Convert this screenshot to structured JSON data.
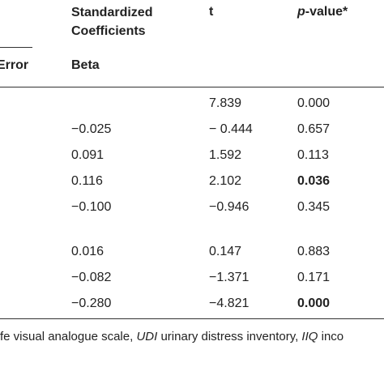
{
  "table": {
    "header": {
      "coefficients": "Standardized Coefficients",
      "t": "t",
      "p_value": {
        "italic": "p",
        "rest": "-value*"
      }
    },
    "subheader": {
      "error": "Error",
      "beta": "Beta"
    },
    "rows": [
      {
        "beta": null,
        "t": "7.839",
        "p": "0.000",
        "bold_p": false
      },
      {
        "beta": "−0.025",
        "t": "− 0.444",
        "p": "0.657",
        "bold_p": false
      },
      {
        "beta": "0.091",
        "t": "1.592",
        "p": "0.113",
        "bold_p": false
      },
      {
        "beta": "0.116",
        "t": "2.102",
        "p": "0.036",
        "bold_p": true
      },
      {
        "beta": "−0.100",
        "t": "−0.946",
        "p": "0.345",
        "bold_p": false
      },
      {
        "beta": "0.016",
        "t": "0.147",
        "p": "0.883",
        "bold_p": false
      },
      {
        "beta": "−0.082",
        "t": "−1.371",
        "p": "0.171",
        "bold_p": false
      },
      {
        "beta": "−0.280",
        "t": "−4.821",
        "p": "0.000",
        "bold_p": true
      }
    ],
    "footnote": [
      {
        "text": "fe visual analogue scale, ",
        "italic": false
      },
      {
        "text": "UDI",
        "italic": true
      },
      {
        "text": " urinary distress inventory, ",
        "italic": false
      },
      {
        "text": "IIQ",
        "italic": true
      },
      {
        "text": " inco",
        "italic": false
      }
    ]
  }
}
